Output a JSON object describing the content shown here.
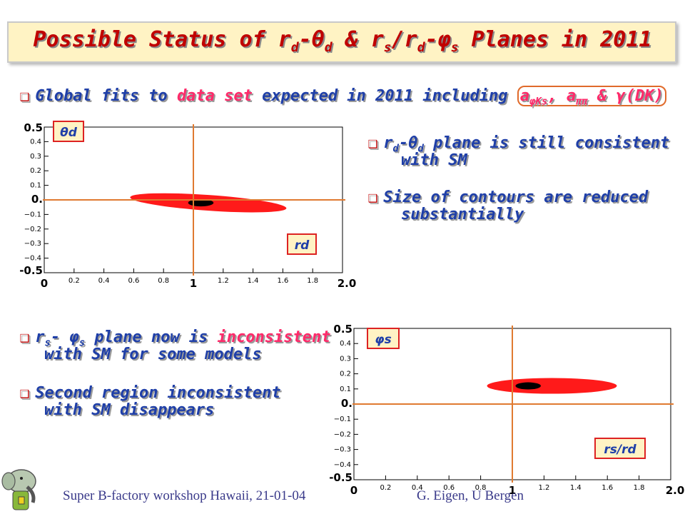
{
  "title": {
    "part1": "Possible Status of r",
    "sub1": "d",
    "part2": "-θ",
    "sub2": "d",
    "part3": " & r",
    "sub3": "s",
    "part4": "/r",
    "sub4": "d",
    "part5": "-φ",
    "sub5": "s",
    "part6": " Planes in 2011"
  },
  "bullets": {
    "global": {
      "text1": "Global fits to ",
      "red_text": "data set",
      "text2": " expected in 2011 including ",
      "hl_a": "a",
      "hl_sub1": "φKs",
      "hl_mid": ", a",
      "hl_sub2": "ππ",
      "hl_end": " & γ(DK)"
    },
    "rd1": {
      "text1": "r",
      "sub1": "d",
      "text2": "-θ",
      "sub2": "d",
      "text3": " plane is still consistent",
      "line2": "with SM"
    },
    "rd2": {
      "line1": "Size of contours are reduced",
      "line2": "substantially"
    },
    "rs1": {
      "text1": "r",
      "sub1": "s",
      "text2": "- φ",
      "sub2": "s",
      "text3": " plane now is ",
      "red_text": "inconsistent",
      "line2": "with SM for some models"
    },
    "rs2": {
      "line1": "Second region inconsistent",
      "line2": "with SM disappears"
    }
  },
  "icons": {
    "bullet": "checkbox-bullet-icon",
    "mascot": "elephant-mascot-icon"
  },
  "colors": {
    "title_red": "#c00000",
    "bullet_blue": "#1f3fa8",
    "highlight_red": "#ff2a6a",
    "contour_red": "#ff1a1a",
    "crosshair": "#e07a30",
    "title_bg": "#fff3c4"
  },
  "chart_data": [
    {
      "type": "contour",
      "title": "",
      "xlabel": "r_d",
      "ylabel": "θ_d",
      "xlim": [
        0,
        2
      ],
      "ylim": [
        -0.5,
        0.5
      ],
      "big_labels_x": [
        "0",
        "1",
        "2.0"
      ],
      "small_ticks_x": [
        "0.2",
        "0.4",
        "0.6",
        "0.8",
        "1.2",
        "1.4",
        "1.6",
        "1.8"
      ],
      "big_labels_y": [
        "0.5",
        "0.",
        "-0.5"
      ],
      "small_ticks_y": [
        "0.4",
        "0.3",
        "0.2",
        "0.1",
        "−0.1",
        "−0.2",
        "−0.3",
        "−0.4"
      ],
      "sm_point": {
        "x": 1,
        "y": 0
      },
      "regions": [
        {
          "level": "outer",
          "color": "#ff1a1a",
          "center": [
            1.1,
            -0.02
          ],
          "x_range": [
            0.7,
            1.75
          ]
        },
        {
          "level": "inner",
          "color": "#000000",
          "center": [
            1.05,
            -0.02
          ],
          "x_range": [
            0.98,
            1.15
          ]
        }
      ],
      "label_box": "θd",
      "axis_box": "rd"
    },
    {
      "type": "contour",
      "title": "",
      "xlabel": "r_s/r_d",
      "ylabel": "φ_s",
      "xlim": [
        0,
        2
      ],
      "ylim": [
        -0.5,
        0.5
      ],
      "big_labels_x": [
        "0",
        "1",
        "2.0"
      ],
      "small_ticks_x": [
        "0.2",
        "0.4",
        "0.6",
        "0.8",
        "1.2",
        "1.4",
        "1.6",
        "1.8"
      ],
      "big_labels_y": [
        "0.5",
        "0.",
        "-0.5"
      ],
      "small_ticks_y": [
        "0.4",
        "0.3",
        "0.2",
        "0.1",
        "−0.1",
        "−0.2",
        "−0.3",
        "−0.4"
      ],
      "sm_point": {
        "x": 1,
        "y": 0
      },
      "regions": [
        {
          "level": "outer",
          "color": "#ff1a1a",
          "center": [
            1.25,
            0.12
          ],
          "x_range": [
            0.98,
            1.8
          ]
        },
        {
          "level": "inner",
          "color": "#000000",
          "center": [
            1.1,
            0.12
          ],
          "x_range": [
            1.02,
            1.18
          ]
        }
      ],
      "label_box": "φs",
      "axis_box": "rs/rd"
    }
  ],
  "footer": {
    "left": "Super B-factory workshop Hawaii, 21-01-04",
    "right": "G. Eigen, U Bergen"
  }
}
